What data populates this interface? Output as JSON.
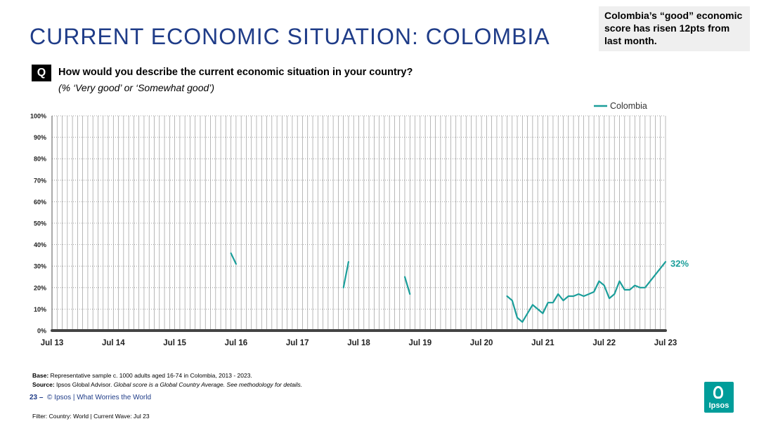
{
  "slide": {
    "title": "CURRENT ECONOMIC SITUATION: COLOMBIA",
    "callout": "Colombia’s “good” economic score has risen 12pts from last month.",
    "q_badge": "Q",
    "question": "How would you describe the current economic situation in your country?",
    "subquestion": "(% ‘Very good’ or ‘Somewhat good’)",
    "base_label": "Base:",
    "base_text": "Representative sample c. 1000 adults aged 16-74 in Colombia, 2013 - 2023.",
    "source_label": "Source:",
    "source_text": "Ipsos Global Advisor.",
    "source_note": "Global score is a Global Country Average. See methodology for details.",
    "page_number": "23 –",
    "page_footer": "© Ipsos | What Worries the World",
    "filter": "Filter: Country: World | Current Wave: Jul 23",
    "logo_text": "Ipsos"
  },
  "colors": {
    "title": "#1f3c88",
    "series": "#1a9e9a",
    "grid": "#9a9a9a",
    "axis": "#555555",
    "logo": "#009d9a"
  },
  "chart_data": {
    "type": "line",
    "x_start": "2013-07",
    "x_end": "2023-07",
    "x_tick_labels": [
      "Jul 13",
      "Jul 14",
      "Jul 15",
      "Jul 16",
      "Jul 17",
      "Jul 18",
      "Jul 19",
      "Jul 20",
      "Jul 21",
      "Jul 22",
      "Jul 23"
    ],
    "y_tick_labels": [
      "0%",
      "10%",
      "20%",
      "30%",
      "40%",
      "50%",
      "60%",
      "70%",
      "80%",
      "90%",
      "100%"
    ],
    "ylim": [
      0,
      100
    ],
    "grid": "vertical monthly gridlines, horizontal dotted gridlines",
    "legend_position": "top-right",
    "series": [
      {
        "name": "Colombia",
        "color": "#1a9e9a",
        "segments": [
          [
            [
              "2016-06",
              36
            ],
            [
              "2016-07",
              31
            ]
          ],
          [
            [
              "2018-04",
              20
            ],
            [
              "2018-05",
              32
            ]
          ],
          [
            [
              "2019-04",
              25
            ],
            [
              "2019-05",
              17
            ]
          ],
          [
            [
              "2020-12",
              16
            ],
            [
              "2021-01",
              14
            ],
            [
              "2021-02",
              6
            ],
            [
              "2021-03",
              4
            ],
            [
              "2021-04",
              8
            ],
            [
              "2021-05",
              12
            ],
            [
              "2021-06",
              10
            ],
            [
              "2021-07",
              8
            ],
            [
              "2021-08",
              13
            ],
            [
              "2021-09",
              13
            ],
            [
              "2021-10",
              17
            ],
            [
              "2021-11",
              14
            ],
            [
              "2021-12",
              16
            ],
            [
              "2022-01",
              16
            ],
            [
              "2022-02",
              17
            ],
            [
              "2022-03",
              16
            ],
            [
              "2022-04",
              17
            ],
            [
              "2022-05",
              18
            ],
            [
              "2022-06",
              23
            ],
            [
              "2022-07",
              21
            ],
            [
              "2022-08",
              15
            ],
            [
              "2022-09",
              17
            ],
            [
              "2022-10",
              23
            ],
            [
              "2022-11",
              19
            ],
            [
              "2022-12",
              19
            ],
            [
              "2023-01",
              21
            ],
            [
              "2023-02",
              20
            ],
            [
              "2023-03",
              20
            ],
            [
              "2023-07",
              32
            ]
          ]
        ]
      }
    ],
    "end_label": "32%"
  }
}
